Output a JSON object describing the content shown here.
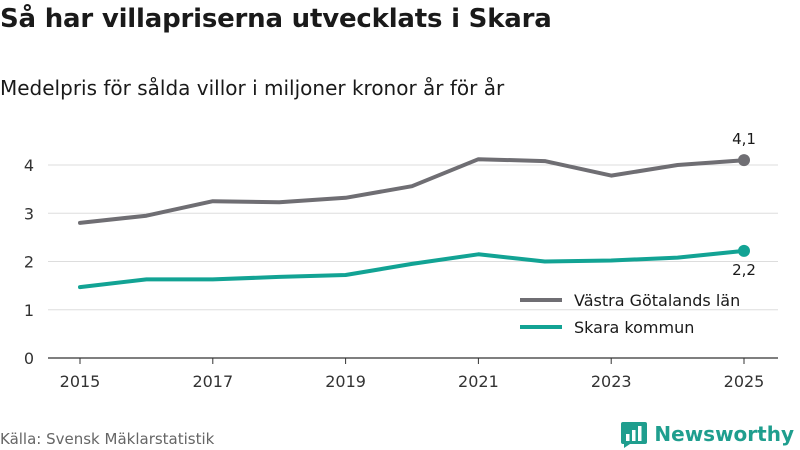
{
  "header": {
    "title": "Så har villapriserna utvecklats i Skara",
    "subtitle": "Medelpris för sålda villor i miljoner kronor år för år"
  },
  "footer": {
    "source": "Källa: Svensk Mäklarstatistik",
    "brand": "Newsworthy"
  },
  "colors": {
    "vastra": "#6f6e73",
    "skara": "#12a394",
    "grid": "#dddddd",
    "axis": "#333333",
    "brand": "#1f9e8e"
  },
  "chart_data": {
    "type": "line",
    "x": [
      2015,
      2016,
      2017,
      2018,
      2019,
      2020,
      2021,
      2022,
      2023,
      2024,
      2025
    ],
    "x_tick_labels": [
      "2015",
      "2017",
      "2019",
      "2021",
      "2023",
      "2025"
    ],
    "y_tick_labels": [
      "0",
      "1",
      "2",
      "3",
      "4"
    ],
    "ylim": [
      0,
      4.4
    ],
    "grid": true,
    "legend_position": "bottom-right",
    "series": [
      {
        "name": "Västra Götalands län",
        "values": [
          2.8,
          2.95,
          3.25,
          3.23,
          3.32,
          3.56,
          4.12,
          4.08,
          3.78,
          4.0,
          4.1
        ],
        "end_label": "4,1"
      },
      {
        "name": "Skara kommun",
        "values": [
          1.47,
          1.63,
          1.63,
          1.68,
          1.72,
          1.95,
          2.15,
          2.0,
          2.02,
          2.08,
          2.22
        ],
        "end_label": "2,2"
      }
    ]
  }
}
